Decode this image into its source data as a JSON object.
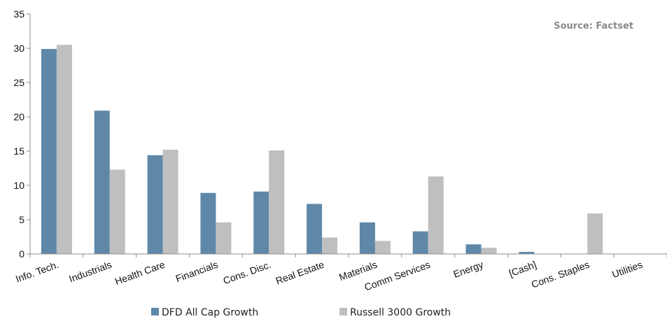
{
  "source_note": "Source: Factset",
  "colors": {
    "dfd": "#5f88a8",
    "russell": "#bfbfbf",
    "axis": "#8c8c8c"
  },
  "chart_data": {
    "type": "bar",
    "title": "",
    "xlabel": "",
    "ylabel": "",
    "ylim": [
      0,
      35
    ],
    "yticks": [
      0,
      5,
      10,
      15,
      20,
      25,
      30,
      35
    ],
    "grid": false,
    "legend_position": "bottom",
    "categories": [
      "Info. Tech.",
      "Industrials",
      "Health Care",
      "Financials",
      "Cons. Disc.",
      "Real Estate",
      "Materials",
      "Comm Services",
      "Energy",
      "[Cash]",
      "Cons. Staples",
      "Utilities"
    ],
    "series": [
      {
        "name": "DFD All Cap Growth",
        "values": [
          29.9,
          20.9,
          14.4,
          8.9,
          9.1,
          7.3,
          4.6,
          3.3,
          1.4,
          0.3,
          0,
          0
        ]
      },
      {
        "name": "Russell 3000 Growth",
        "values": [
          30.5,
          12.3,
          15.2,
          4.6,
          15.1,
          2.4,
          1.9,
          11.3,
          0.9,
          0,
          5.9,
          0
        ]
      }
    ]
  }
}
